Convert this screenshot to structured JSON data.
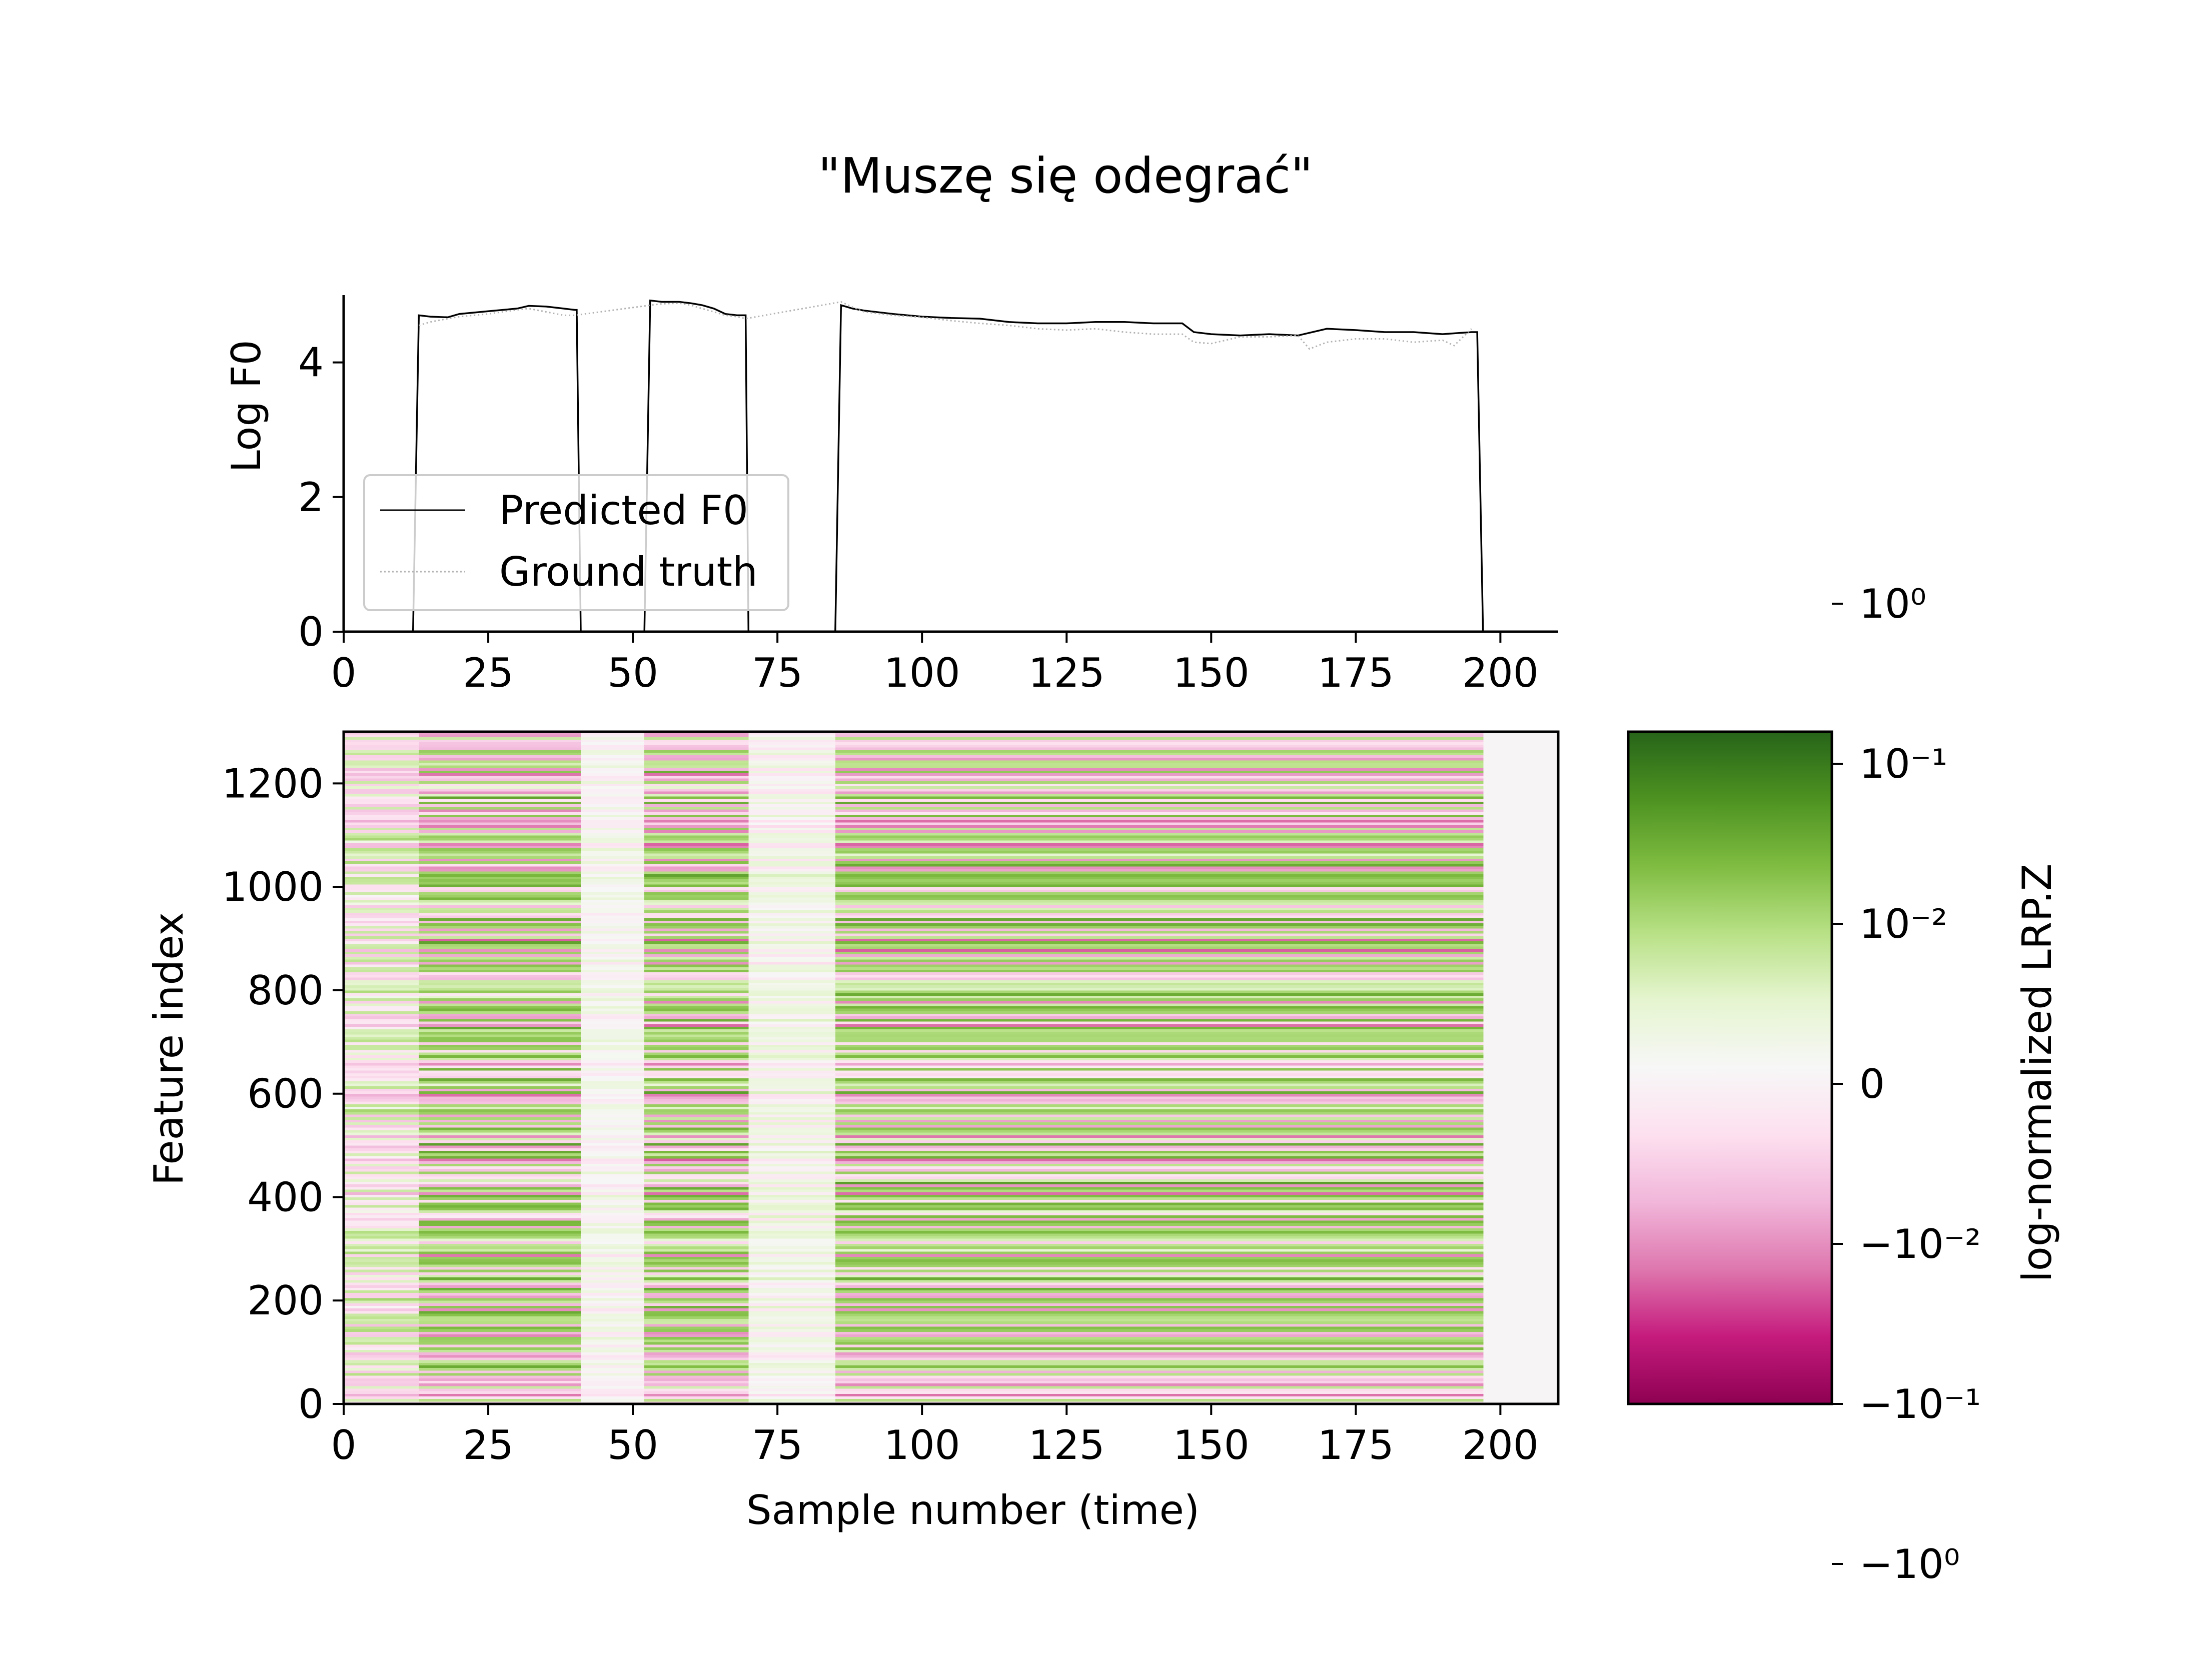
{
  "figure_title": "\"Muszę się odegrać\"",
  "chart_data": [
    {
      "type": "line",
      "ylabel": "Log F0",
      "xlim": [
        0,
        210
      ],
      "ylim": [
        0,
        5
      ],
      "xticks": [
        0,
        25,
        50,
        75,
        100,
        125,
        150,
        175,
        200
      ],
      "yticks": [
        0,
        2,
        4
      ],
      "grid": false,
      "legend": {
        "placement": "lower-left",
        "entries": [
          "Predicted F0",
          "Ground truth"
        ]
      },
      "series": [
        {
          "name": "Predicted F0",
          "style": "solid",
          "color": "#000000",
          "x": [
            12,
            13,
            15,
            18,
            20,
            25,
            30,
            32,
            35,
            38,
            40,
            40.3,
            41,
            52,
            53,
            55,
            58,
            60,
            62,
            64,
            66,
            68,
            69.5,
            70,
            85,
            86,
            88,
            90,
            95,
            100,
            105,
            110,
            115,
            120,
            125,
            130,
            135,
            140,
            145,
            147,
            150,
            155,
            160,
            165,
            170,
            175,
            180,
            185,
            190,
            195,
            196,
            197
          ],
          "y": [
            0,
            4.7,
            4.68,
            4.67,
            4.72,
            4.76,
            4.8,
            4.84,
            4.83,
            4.8,
            4.78,
            4.78,
            0,
            0,
            4.92,
            4.9,
            4.9,
            4.88,
            4.85,
            4.8,
            4.72,
            4.7,
            4.7,
            0,
            0,
            4.85,
            4.8,
            4.77,
            4.72,
            4.68,
            4.66,
            4.65,
            4.6,
            4.58,
            4.58,
            4.6,
            4.6,
            4.58,
            4.58,
            4.45,
            4.42,
            4.4,
            4.42,
            4.4,
            4.5,
            4.48,
            4.45,
            4.45,
            4.42,
            4.45,
            4.45,
            0
          ]
        },
        {
          "name": "Ground truth",
          "style": "dotted",
          "color": "#b3b3b3",
          "x": [
            13,
            15,
            18,
            20,
            25,
            30,
            32,
            35,
            38,
            40,
            53,
            55,
            58,
            60,
            62,
            64,
            66,
            68,
            69.5,
            86,
            88,
            90,
            95,
            100,
            105,
            110,
            115,
            120,
            125,
            130,
            135,
            140,
            145,
            147,
            150,
            155,
            160,
            165,
            167,
            170,
            175,
            180,
            185,
            190,
            192,
            195
          ],
          "y": [
            4.55,
            4.6,
            4.65,
            4.68,
            4.72,
            4.78,
            4.8,
            4.75,
            4.7,
            4.7,
            4.85,
            4.87,
            4.88,
            4.85,
            4.8,
            4.75,
            4.7,
            4.68,
            4.65,
            4.9,
            4.82,
            4.75,
            4.7,
            4.67,
            4.62,
            4.58,
            4.55,
            4.5,
            4.48,
            4.5,
            4.45,
            4.42,
            4.42,
            4.3,
            4.28,
            4.38,
            4.38,
            4.4,
            4.2,
            4.3,
            4.35,
            4.35,
            4.3,
            4.33,
            4.25,
            4.5
          ]
        }
      ]
    },
    {
      "type": "heatmap",
      "xlabel": "Sample number (time)",
      "ylabel": "Feature index",
      "xlim": [
        0,
        210
      ],
      "ylim": [
        0,
        1300
      ],
      "xticks": [
        0,
        25,
        50,
        75,
        100,
        125,
        150,
        175,
        200
      ],
      "yticks": [
        0,
        200,
        400,
        600,
        800,
        1000,
        1200
      ],
      "data_extent_x": [
        0,
        197
      ],
      "colormap": "PiYG",
      "colorbar": {
        "label": "log-normalized LRP.Z",
        "scale": "symlog",
        "range": [
          -2,
          2.2
        ],
        "ticks": [
          {
            "value": 1,
            "label": "10⁰"
          },
          {
            "value": 0.1,
            "label": "10⁻¹"
          },
          {
            "value": 0.01,
            "label": "10⁻²"
          },
          {
            "value": 0,
            "label": "0"
          },
          {
            "value": -0.01,
            "label": "−10⁻²"
          },
          {
            "value": -0.1,
            "label": "−10⁻¹"
          },
          {
            "value": -1,
            "label": "−10⁰"
          }
        ],
        "colors": [
          "#8e0152",
          "#c51b7d",
          "#de77ae",
          "#f1b6da",
          "#fde0ef",
          "#f7f7f7",
          "#e6f5d0",
          "#b8e186",
          "#7fbc41",
          "#4d9221",
          "#276419"
        ]
      },
      "segments": [
        {
          "x": [
            0,
            13
          ],
          "intensity": 0.45,
          "green_bias": 0.45
        },
        {
          "x": [
            13,
            41
          ],
          "intensity": 0.75,
          "green_bias": 0.6
        },
        {
          "x": [
            41,
            52
          ],
          "intensity": 0.15,
          "green_bias": 0.5
        },
        {
          "x": [
            52,
            70
          ],
          "intensity": 0.75,
          "green_bias": 0.6
        },
        {
          "x": [
            70,
            85
          ],
          "intensity": 0.2,
          "green_bias": 0.62
        },
        {
          "x": [
            85,
            197
          ],
          "intensity": 0.75,
          "green_bias": 0.62
        }
      ]
    }
  ]
}
